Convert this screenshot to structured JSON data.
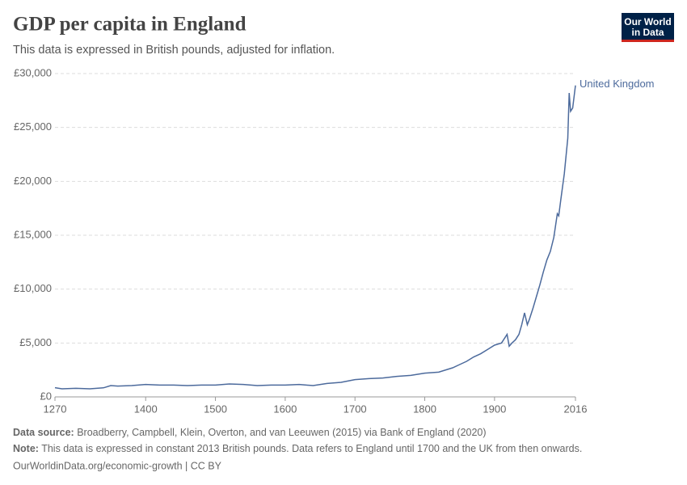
{
  "chart_data": {
    "type": "line",
    "title": "GDP per capita in England",
    "subtitle": "This data is expressed in British pounds, adjusted for inflation.",
    "logo": [
      "Our World",
      "in Data"
    ],
    "source_label": "Data source:",
    "source": "Broadberry, Campbell, Klein, Overton, and van Leeuwen (2015) via Bank of England (2020)",
    "note_label": "Note:",
    "note": "This data is expressed in constant 2013 British pounds. Data refers to England until 1700 and the UK from then onwards.",
    "url": "OurWorldinData.org/economic-growth | CC BY",
    "x": [
      1270,
      1280,
      1300,
      1320,
      1340,
      1350,
      1360,
      1380,
      1400,
      1420,
      1440,
      1460,
      1480,
      1500,
      1520,
      1540,
      1560,
      1580,
      1600,
      1620,
      1640,
      1660,
      1680,
      1700,
      1720,
      1740,
      1760,
      1780,
      1800,
      1820,
      1840,
      1850,
      1860,
      1870,
      1880,
      1890,
      1900,
      1910,
      1913,
      1918,
      1921,
      1925,
      1930,
      1935,
      1939,
      1943,
      1947,
      1950,
      1955,
      1960,
      1965,
      1970,
      1975,
      1980,
      1985,
      1990,
      1992,
      1995,
      2000,
      2005,
      2007,
      2009,
      2012,
      2016
    ],
    "series": [
      {
        "name": "United Kingdom",
        "color": "#4c6a9c",
        "values": [
          850,
          750,
          800,
          750,
          850,
          1050,
          1000,
          1050,
          1150,
          1100,
          1100,
          1050,
          1100,
          1100,
          1200,
          1150,
          1050,
          1100,
          1100,
          1150,
          1050,
          1250,
          1350,
          1600,
          1700,
          1750,
          1900,
          2000,
          2200,
          2300,
          2700,
          3000,
          3300,
          3700,
          4000,
          4400,
          4800,
          5000,
          5300,
          5800,
          4700,
          5000,
          5300,
          5800,
          6700,
          7800,
          6700,
          7200,
          8200,
          9300,
          10400,
          11600,
          12700,
          13500,
          14800,
          17000,
          16800,
          18300,
          20700,
          24000,
          28200,
          26500,
          26800,
          28900
        ]
      }
    ],
    "xlim": [
      1270,
      2016
    ],
    "xticks": [
      1270,
      1400,
      1500,
      1600,
      1700,
      1800,
      1900,
      2016
    ],
    "ylim": [
      0,
      30000
    ],
    "yticks": [
      {
        "value": 0,
        "label": "£0"
      },
      {
        "value": 5000,
        "label": "£5,000"
      },
      {
        "value": 10000,
        "label": "£10,000"
      },
      {
        "value": 15000,
        "label": "£15,000"
      },
      {
        "value": 20000,
        "label": "£20,000"
      },
      {
        "value": 25000,
        "label": "£25,000"
      },
      {
        "value": 30000,
        "label": "£30,000"
      }
    ],
    "grid": true
  }
}
